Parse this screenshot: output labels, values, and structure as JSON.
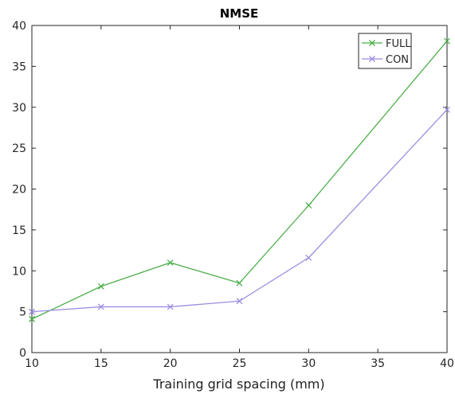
{
  "chart_data": {
    "type": "line",
    "title": "NMSE",
    "xlabel": "Training grid spacing (mm)",
    "ylabel": "",
    "xlim": [
      10,
      40
    ],
    "ylim": [
      0,
      40
    ],
    "xticks": [
      10,
      15,
      20,
      25,
      30,
      35,
      40
    ],
    "yticks": [
      0,
      5,
      10,
      15,
      20,
      25,
      30,
      35,
      40
    ],
    "grid": false,
    "legend_position": "top-right",
    "x": [
      10,
      15,
      20,
      25,
      30,
      40
    ],
    "series": [
      {
        "name": "FULL",
        "color": "#4daf4a",
        "marker": "x",
        "values": [
          4.1,
          8.1,
          11.0,
          8.5,
          18.0,
          38.1
        ]
      },
      {
        "name": "CON",
        "color": "#9a8fe0",
        "marker": "x",
        "values": [
          5.0,
          5.6,
          5.6,
          6.3,
          11.6,
          29.7
        ]
      }
    ]
  }
}
